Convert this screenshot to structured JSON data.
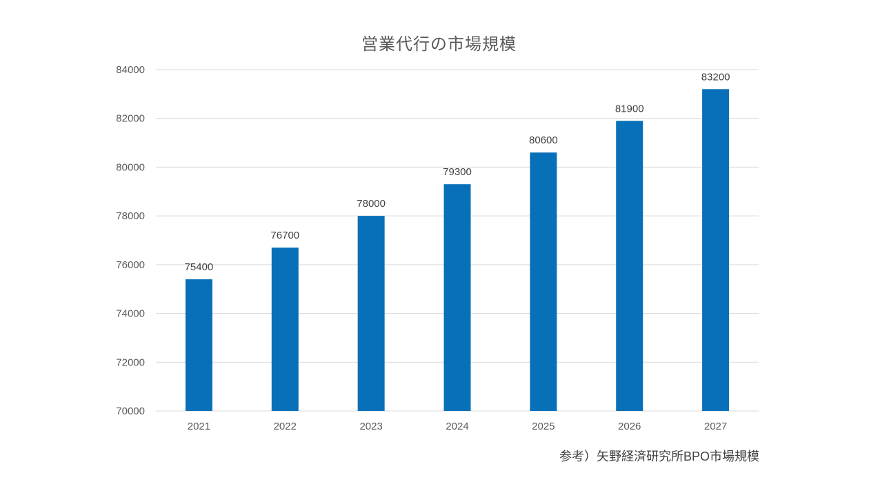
{
  "chart_data": {
    "type": "bar",
    "title": "営業代行の市場規模",
    "categories": [
      "2021",
      "2022",
      "2023",
      "2024",
      "2025",
      "2026",
      "2027"
    ],
    "values": [
      75400,
      76700,
      78000,
      79300,
      80600,
      81900,
      83200
    ],
    "ylim": [
      70000,
      84000
    ],
    "y_ticks": [
      "70000",
      "72000",
      "74000",
      "76000",
      "78000",
      "80000",
      "82000",
      "84000"
    ],
    "xlabel": "",
    "ylabel": "",
    "grid": true,
    "legend": "none",
    "bar_color": "#0870B8",
    "data_labels": true
  },
  "source_note": "参考）矢野経済研究所BPO市場規模"
}
